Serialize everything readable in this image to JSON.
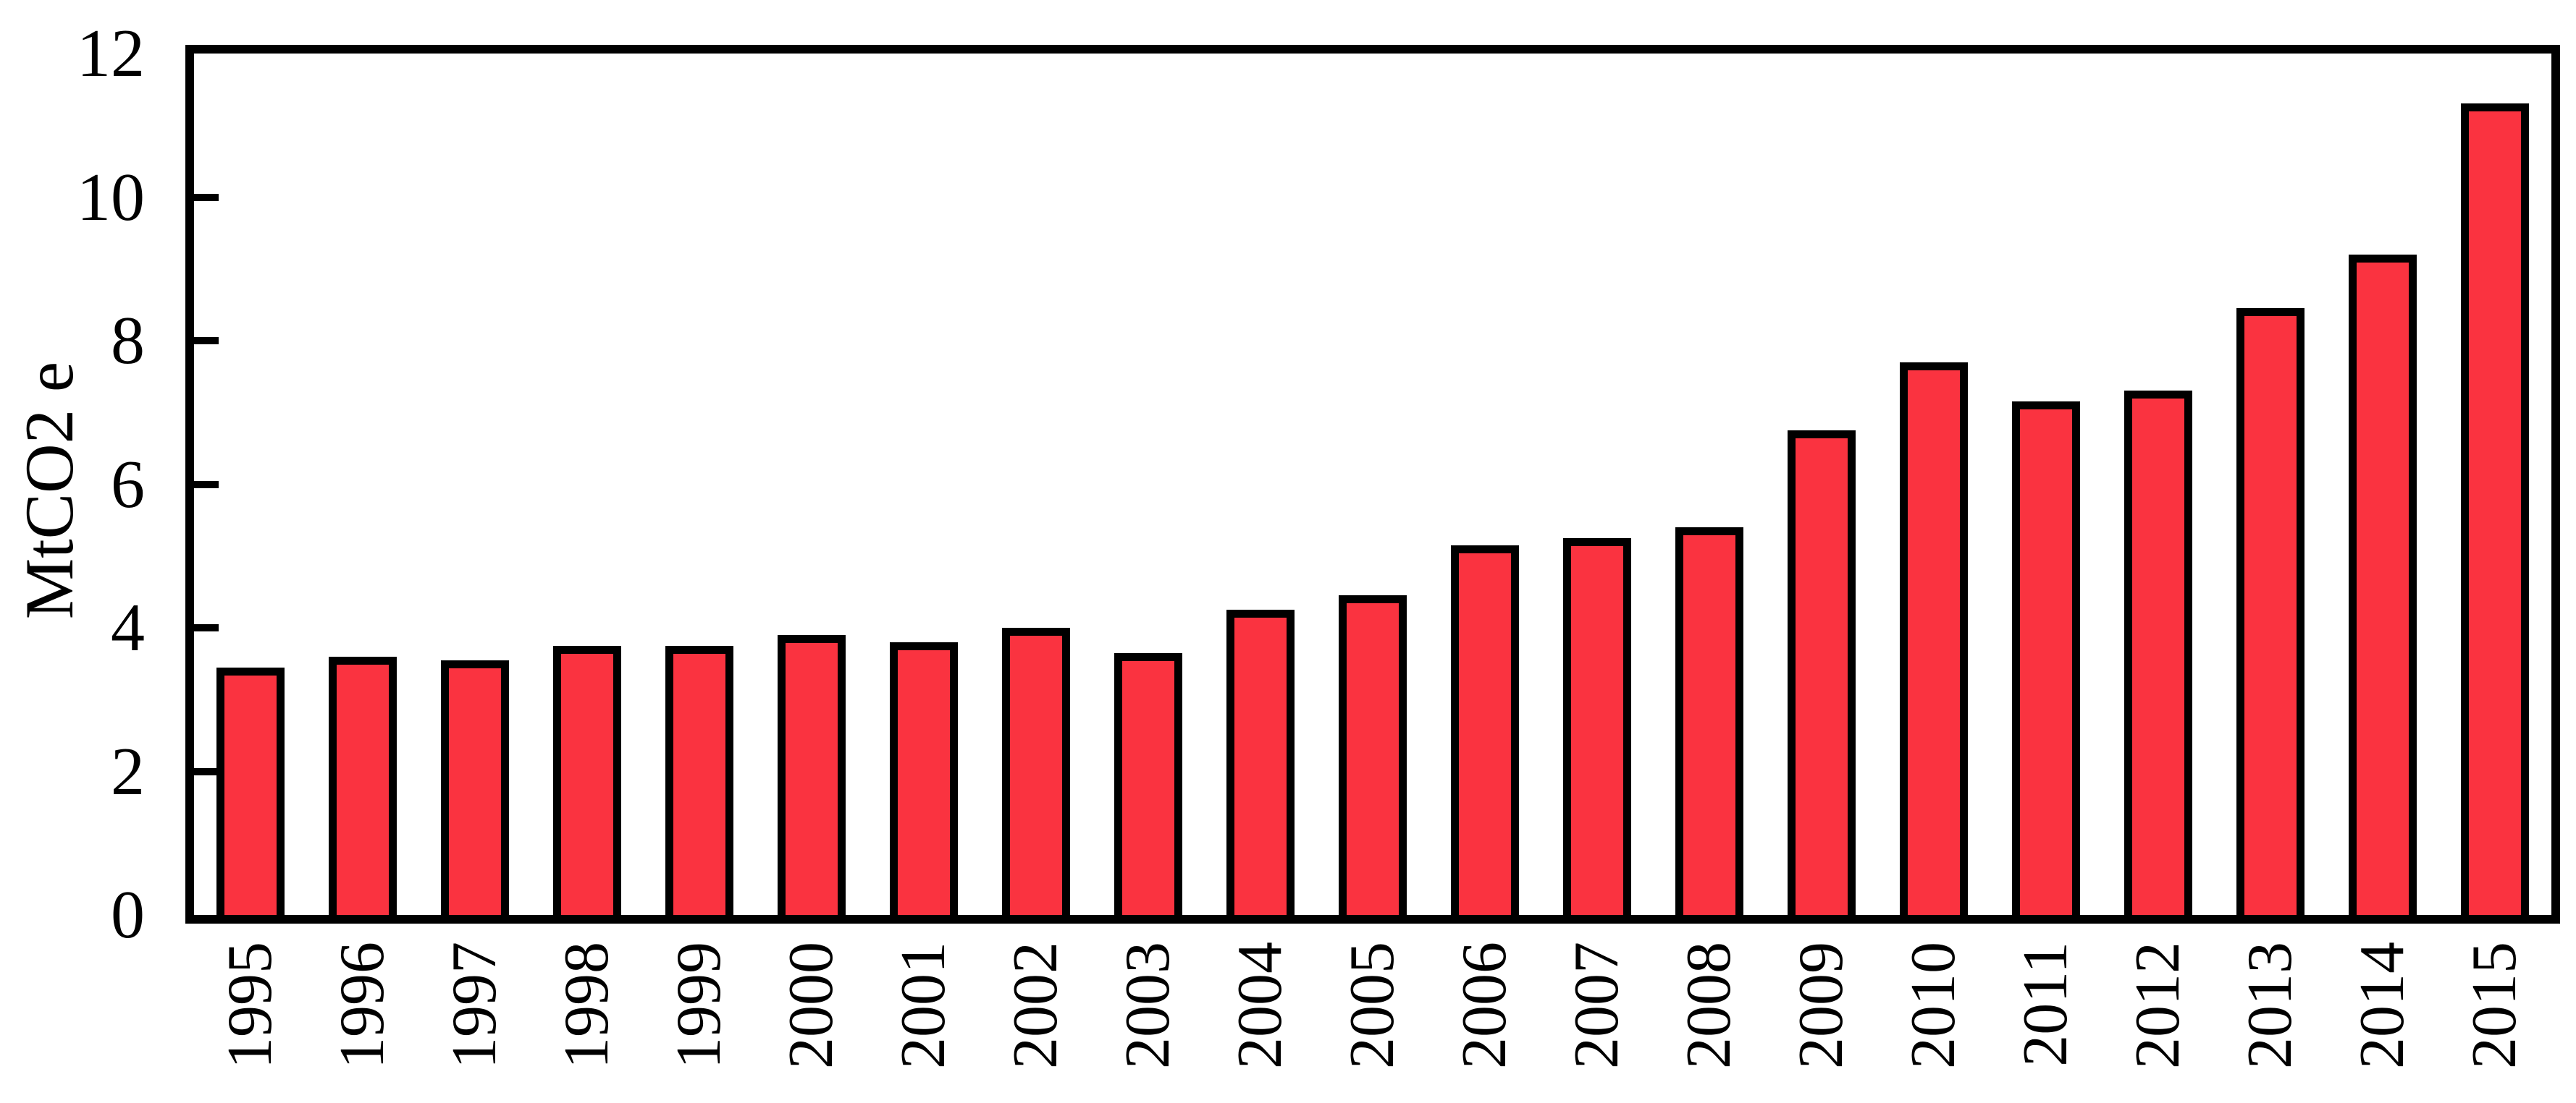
{
  "chart_data": {
    "type": "bar",
    "title": "",
    "xlabel": "",
    "ylabel": "MtCO2 e",
    "categories": [
      "1995",
      "1996",
      "1997",
      "1998",
      "1999",
      "2000",
      "2001",
      "2002",
      "2003",
      "2004",
      "2005",
      "2006",
      "2007",
      "2008",
      "2009",
      "2010",
      "2011",
      "2012",
      "2013",
      "2014",
      "2015"
    ],
    "values": [
      3.4,
      3.55,
      3.5,
      3.7,
      3.7,
      3.85,
      3.75,
      3.95,
      3.6,
      4.2,
      4.4,
      5.1,
      5.2,
      5.35,
      6.7,
      7.65,
      7.1,
      7.25,
      8.4,
      9.15,
      11.25
    ],
    "ylim": [
      0,
      12
    ],
    "yticks": [
      0,
      2,
      4,
      6,
      8,
      10,
      12
    ],
    "grid": false,
    "legend": null,
    "bar_color": "#fa3340",
    "bar_outline_color": "#000000",
    "axis_color": "#000000",
    "background_color": "#ffffff"
  }
}
